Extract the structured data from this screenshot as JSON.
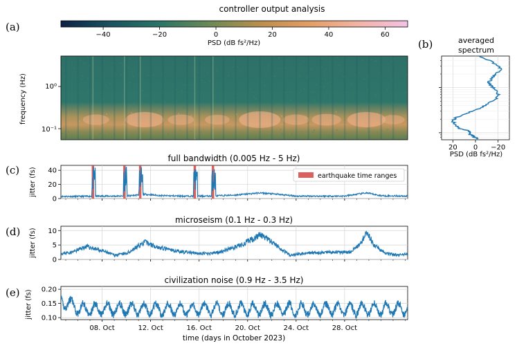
{
  "figure": {
    "title": "controller output analysis",
    "panel_labels": [
      "(a)",
      "(b)",
      "(c)",
      "(d)",
      "(e)"
    ]
  },
  "colorbar": {
    "label": "PSD (dB fs²/Hz)",
    "ticks": [
      "−40",
      "−20",
      "0",
      "20",
      "40",
      "60"
    ],
    "range": [
      -55,
      68
    ],
    "tick_values": [
      -40,
      -20,
      0,
      20,
      40,
      60
    ],
    "colors": [
      "#0b2147",
      "#1b5261",
      "#2b7567",
      "#6b8a55",
      "#b98e4c",
      "#e39d64",
      "#f2b4a4",
      "#f3c2e6"
    ]
  },
  "spectrogram": {
    "ylabel": "frequency (Hz)",
    "ytick_labels": [
      "10⁰",
      "10⁻¹"
    ],
    "ytick_values": [
      1,
      0.1
    ],
    "yrange_hz": [
      0.07,
      5
    ],
    "bg_color": "#2d6e6e"
  },
  "averaged": {
    "title_line1": "averaged",
    "title_line2": "spectrum",
    "xlabel": "PSD (dB fs²/Hz)",
    "xtick_labels": [
      "20",
      "0",
      "−20"
    ],
    "xtick_values": [
      20,
      0,
      -20
    ],
    "xrange": [
      30,
      -30
    ]
  },
  "panels_text": {
    "c_title": "full bandwidth (0.005 Hz - 5 Hz)",
    "c_ylabel": "jitter (fs)",
    "c_yticks": [
      "0",
      "20",
      "40"
    ],
    "legend_label": "earthquake time ranges",
    "d_title": "microseism (0.1 Hz - 0.3 Hz)",
    "d_ylabel": "jitter (fs)",
    "d_yticks": [
      "0",
      "5",
      "10"
    ],
    "e_title": "civilization noise (0.9 Hz - 3.5 Hz)",
    "e_ylabel": "jitter (fs)",
    "e_yticks": [
      "0.10",
      "0.15",
      "0.20"
    ],
    "xtick_labels": [
      "08. Oct",
      "12. Oct",
      "16. Oct",
      "20. Oct",
      "24. Oct",
      "28. Oct"
    ],
    "xlabel": "time (days in October 2023)"
  },
  "chart_data": [
    {
      "type": "heatmap",
      "id": "a",
      "title": "controller output analysis",
      "ylabel": "frequency (Hz)",
      "yscale": "log",
      "ylim_hz": [
        0.07,
        5
      ],
      "xlim_days": [
        4.6,
        33.2
      ],
      "colorbar_label": "PSD (dB fs²/Hz)",
      "colorbar_range": [
        -55,
        68
      ],
      "description_bands": {
        "microseism_band_hz": [
          0.1,
          0.3
        ],
        "peak_days": [
          11.5,
          21.0,
          29.8
        ]
      }
    },
    {
      "type": "line",
      "id": "b",
      "title": "averaged spectrum",
      "xlabel": "PSD (dB fs²/Hz)",
      "xlim": [
        30,
        -30
      ],
      "yscale": "log",
      "ylim_hz": [
        0.07,
        5
      ],
      "x": [
        -2,
        -12,
        -20,
        -22,
        -18,
        -15,
        -12,
        -14,
        -18,
        -20,
        -18,
        -10,
        -2,
        8,
        17,
        20,
        18,
        14,
        6,
        4,
        6,
        2,
        0,
        -2
      ],
      "freq_hz": [
        5.0,
        4.0,
        3.0,
        2.5,
        2.0,
        1.7,
        1.3,
        1.1,
        0.9,
        0.7,
        0.55,
        0.42,
        0.33,
        0.27,
        0.22,
        0.18,
        0.15,
        0.125,
        0.11,
        0.1,
        0.093,
        0.085,
        0.078,
        0.072
      ]
    },
    {
      "type": "line",
      "id": "c",
      "title": "full bandwidth (0.005 Hz - 5 Hz)",
      "ylabel": "jitter (fs)",
      "ylim": [
        0,
        47
      ],
      "xlim_days": [
        4.6,
        33.2
      ],
      "series": [
        {
          "name": "jitter",
          "x": [
            4.6,
            6,
            8,
            10,
            11.5,
            13,
            15,
            17,
            19,
            21,
            22.5,
            24,
            26,
            28,
            29.8,
            31,
            33.2
          ],
          "values": [
            3,
            3,
            3.5,
            3.5,
            6,
            4,
            3.5,
            3.5,
            5,
            8,
            6,
            3.5,
            3.5,
            3.5,
            8,
            4,
            3.5
          ]
        }
      ],
      "earthquake_ranges_days": [
        [
          7.2,
          7.4
        ],
        [
          9.8,
          10.0
        ],
        [
          11.1,
          11.3
        ],
        [
          15.6,
          15.8
        ],
        [
          17.1,
          17.3
        ]
      ],
      "legend": [
        "earthquake time ranges"
      ]
    },
    {
      "type": "line",
      "id": "d",
      "title": "microseism (0.1 Hz - 0.3 Hz)",
      "ylabel": "jitter (fs)",
      "ylim": [
        0,
        11.5
      ],
      "xlim_days": [
        4.6,
        33.2
      ],
      "series": [
        {
          "name": "jitter",
          "x": [
            4.6,
            5.5,
            6.7,
            8,
            9,
            10,
            11.5,
            12.8,
            14,
            15,
            16,
            17,
            18,
            19.5,
            21,
            22,
            23.5,
            25,
            27,
            28.5,
            29.4,
            29.8,
            30.4,
            31.5,
            32.5,
            33.2
          ],
          "values": [
            2,
            2.5,
            4.5,
            3,
            1.5,
            2,
            6,
            4,
            3,
            2.5,
            2,
            2,
            3,
            5,
            8.5,
            6,
            1.5,
            2.2,
            2.5,
            2.5,
            6,
            10,
            5,
            2,
            1.5,
            2
          ]
        }
      ]
    },
    {
      "type": "line",
      "id": "e",
      "title": "civilization noise (0.9 Hz - 3.5 Hz)",
      "ylabel": "jitter (fs)",
      "ylim": [
        0.093,
        0.21
      ],
      "xlim_days": [
        4.6,
        33.2
      ],
      "series": [
        {
          "name": "jitter",
          "baseline": 0.13,
          "daily_amplitude": 0.02,
          "period_days": 1,
          "notes": "diurnal oscillation with peaks up to ~0.20 near start"
        }
      ],
      "xticks": [
        "08. Oct",
        "12. Oct",
        "16. Oct",
        "20. Oct",
        "24. Oct",
        "28. Oct"
      ],
      "xtick_days": [
        8,
        12,
        16,
        20,
        24,
        28
      ],
      "xlabel": "time (days in October 2023)"
    }
  ]
}
